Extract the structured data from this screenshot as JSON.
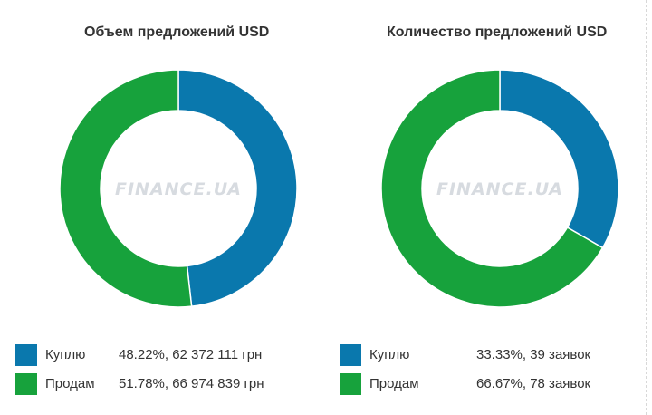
{
  "colors": {
    "buy": "#0a78ad",
    "sell": "#17a23c"
  },
  "watermark": "FINANCE.UA",
  "chart_data": [
    {
      "type": "pie",
      "title": "Объем предложений USD",
      "series": [
        {
          "name": "Куплю",
          "percent": 48.22,
          "display": "48.22%, 62 372 111 грн"
        },
        {
          "name": "Продам",
          "percent": 51.78,
          "display": "51.78%, 66 974 839 грн"
        }
      ]
    },
    {
      "type": "pie",
      "title": "Количество предложений USD",
      "series": [
        {
          "name": "Куплю",
          "percent": 33.33,
          "display": "33.33%, 39 заявок"
        },
        {
          "name": "Продам",
          "percent": 66.67,
          "display": "66.67%, 78 заявок"
        }
      ]
    }
  ]
}
